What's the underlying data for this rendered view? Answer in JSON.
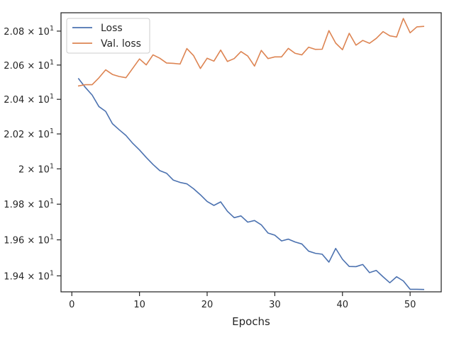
{
  "chart_data": {
    "type": "line",
    "title": "",
    "xlabel": "Epochs",
    "ylabel": "",
    "xlim": [
      -1.6,
      54.6
    ],
    "ylim": [
      19.312,
      20.909
    ],
    "yscale": "log",
    "x_ticks": [
      0,
      10,
      20,
      30,
      40,
      50
    ],
    "y_ticks": [
      {
        "value": 19.4,
        "label": "1.94 × 10^1"
      },
      {
        "value": 19.6,
        "label": "1.96 × 10^1"
      },
      {
        "value": 19.8,
        "label": "1.98 × 10^1"
      },
      {
        "value": 20.0,
        "label": "2 × 10^1"
      },
      {
        "value": 20.2,
        "label": "2.02 × 10^1"
      },
      {
        "value": 20.4,
        "label": "2.04 × 10^1"
      },
      {
        "value": 20.6,
        "label": "2.06 × 10^1"
      },
      {
        "value": 20.8,
        "label": "2.08 × 10^1"
      }
    ],
    "grid": false,
    "legend_position": "top-left",
    "x": [
      1,
      2,
      3,
      4,
      5,
      6,
      7,
      8,
      9,
      10,
      11,
      12,
      13,
      14,
      15,
      16,
      17,
      18,
      19,
      20,
      21,
      22,
      23,
      24,
      25,
      26,
      27,
      28,
      29,
      30,
      31,
      32,
      33,
      34,
      35,
      36,
      37,
      38,
      39,
      40,
      41,
      42,
      43,
      44,
      45,
      46,
      47,
      48,
      49,
      50,
      51,
      52
    ],
    "series": [
      {
        "name": "Loss",
        "color": "#4c72b0",
        "values": [
          20.52,
          20.469,
          20.425,
          20.358,
          20.33,
          20.259,
          20.224,
          20.191,
          20.146,
          20.108,
          20.065,
          20.025,
          19.99,
          19.975,
          19.936,
          19.923,
          19.915,
          19.887,
          19.853,
          19.815,
          19.793,
          19.813,
          19.76,
          19.724,
          19.734,
          19.699,
          19.708,
          19.684,
          19.638,
          19.626,
          19.594,
          19.604,
          19.588,
          19.577,
          19.537,
          19.525,
          19.52,
          19.476,
          19.552,
          19.492,
          19.452,
          19.451,
          19.463,
          19.418,
          19.43,
          19.395,
          19.362,
          19.395,
          19.372,
          19.326,
          19.326,
          19.325
        ]
      },
      {
        "name": "Val. loss",
        "color": "#dd8452",
        "values": [
          20.478,
          20.485,
          20.485,
          20.525,
          20.572,
          20.545,
          20.533,
          20.526,
          20.581,
          20.636,
          20.601,
          20.66,
          20.64,
          20.612,
          20.61,
          20.606,
          20.697,
          20.655,
          20.58,
          20.64,
          20.623,
          20.688,
          20.621,
          20.638,
          20.679,
          20.653,
          20.594,
          20.686,
          20.638,
          20.648,
          20.648,
          20.698,
          20.669,
          20.66,
          20.705,
          20.692,
          20.693,
          20.803,
          20.729,
          20.69,
          20.787,
          20.717,
          20.745,
          20.728,
          20.757,
          20.797,
          20.772,
          20.765,
          20.875,
          20.79,
          20.825,
          20.828
        ]
      }
    ]
  }
}
